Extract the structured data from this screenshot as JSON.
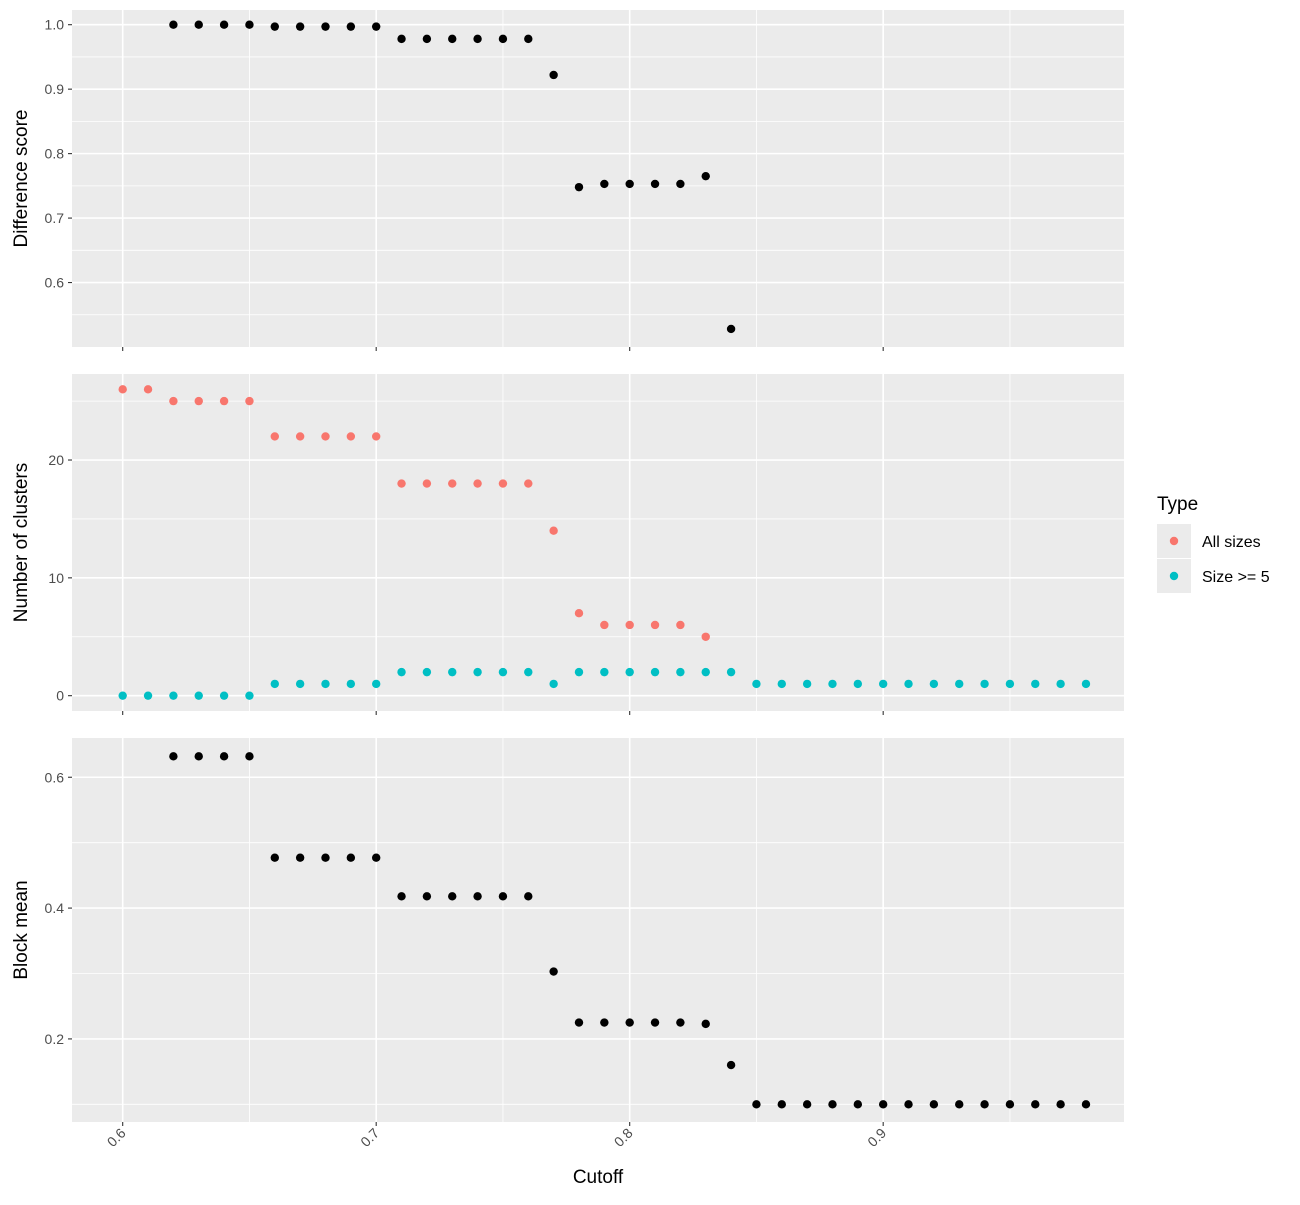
{
  "chart_data": {
    "type": "scatter",
    "xlabel": "Cutoff",
    "xlim": [
      0.58,
      0.995
    ],
    "xticks": [
      0.6,
      0.7,
      0.8,
      0.9
    ],
    "xtick_labels": [
      "0.6",
      "0.7",
      "0.8",
      "0.9"
    ],
    "x_tick_rotation_deg": -45,
    "background": "#ebebeb",
    "grid": true,
    "facets": [
      {
        "id": "difference",
        "ylabel": "Difference score",
        "ylim": [
          0.5,
          1.0228
        ],
        "yticks": [
          0.6,
          0.7,
          0.8,
          0.9,
          1.0
        ],
        "ytick_labels": [
          "0.6",
          "0.7",
          "0.8",
          "0.9",
          "1.0"
        ],
        "series": [
          {
            "color": "#000000",
            "x": [
              0.62,
              0.63,
              0.64,
              0.65,
              0.66,
              0.67,
              0.68,
              0.69,
              0.7,
              0.71,
              0.72,
              0.73,
              0.74,
              0.75,
              0.76,
              0.77,
              0.78,
              0.79,
              0.8,
              0.81,
              0.82,
              0.83,
              0.84
            ],
            "y": [
              1.0,
              1.0,
              1.0,
              1.0,
              0.997,
              0.997,
              0.997,
              0.997,
              0.997,
              0.978,
              0.978,
              0.978,
              0.978,
              0.978,
              0.978,
              0.922,
              0.748,
              0.753,
              0.753,
              0.753,
              0.753,
              0.765,
              0.528
            ]
          }
        ]
      },
      {
        "id": "clusters",
        "ylabel": "Number of clusters",
        "ylim": [
          -1.3,
          27.3
        ],
        "yticks": [
          0,
          10,
          20
        ],
        "ytick_labels": [
          "0",
          "10",
          "20"
        ],
        "series": [
          {
            "name": "All sizes",
            "color": "#f8766d",
            "x": [
              0.6,
              0.61,
              0.62,
              0.63,
              0.64,
              0.65,
              0.66,
              0.67,
              0.68,
              0.69,
              0.7,
              0.71,
              0.72,
              0.73,
              0.74,
              0.75,
              0.76,
              0.77,
              0.78,
              0.79,
              0.8,
              0.81,
              0.82,
              0.83
            ],
            "y": [
              26,
              26,
              25,
              25,
              25,
              25,
              22,
              22,
              22,
              22,
              22,
              18,
              18,
              18,
              18,
              18,
              18,
              14,
              7,
              6,
              6,
              6,
              6,
              5
            ]
          },
          {
            "name": "Size >= 5",
            "color": "#00bfc4",
            "x": [
              0.6,
              0.61,
              0.62,
              0.63,
              0.64,
              0.65,
              0.66,
              0.67,
              0.68,
              0.69,
              0.7,
              0.71,
              0.72,
              0.73,
              0.74,
              0.75,
              0.76,
              0.77,
              0.78,
              0.79,
              0.8,
              0.81,
              0.82,
              0.83,
              0.84,
              0.85,
              0.86,
              0.87,
              0.88,
              0.89,
              0.9,
              0.91,
              0.92,
              0.93,
              0.94,
              0.95,
              0.96,
              0.97,
              0.98
            ],
            "y": [
              0,
              0,
              0,
              0,
              0,
              0,
              1,
              1,
              1,
              1,
              1,
              2,
              2,
              2,
              2,
              2,
              2,
              1,
              2,
              2,
              2,
              2,
              2,
              2,
              2,
              1,
              1,
              1,
              1,
              1,
              1,
              1,
              1,
              1,
              1,
              1,
              1,
              1,
              1
            ]
          }
        ]
      },
      {
        "id": "blockmean",
        "ylabel": "Block mean",
        "ylim": [
          0.073,
          0.66
        ],
        "yticks": [
          0.2,
          0.4,
          0.6
        ],
        "ytick_labels": [
          "0.2",
          "0.4",
          "0.6"
        ],
        "series": [
          {
            "color": "#000000",
            "x": [
              0.62,
              0.63,
              0.64,
              0.65,
              0.66,
              0.67,
              0.68,
              0.69,
              0.7,
              0.71,
              0.72,
              0.73,
              0.74,
              0.75,
              0.76,
              0.77,
              0.78,
              0.79,
              0.8,
              0.81,
              0.82,
              0.83,
              0.84,
              0.85,
              0.86,
              0.87,
              0.88,
              0.89,
              0.9,
              0.91,
              0.92,
              0.93,
              0.94,
              0.95,
              0.96,
              0.97,
              0.98
            ],
            "y": [
              0.632,
              0.632,
              0.632,
              0.632,
              0.477,
              0.477,
              0.477,
              0.477,
              0.477,
              0.418,
              0.418,
              0.418,
              0.418,
              0.418,
              0.418,
              0.303,
              0.225,
              0.225,
              0.225,
              0.225,
              0.225,
              0.223,
              0.16,
              0.1,
              0.1,
              0.1,
              0.1,
              0.1,
              0.1,
              0.1,
              0.1,
              0.1,
              0.1,
              0.1,
              0.1,
              0.1,
              0.1
            ]
          }
        ]
      }
    ],
    "legend": {
      "title": "Type",
      "position": "right",
      "entries": [
        {
          "label": "All sizes",
          "color": "#f8766d"
        },
        {
          "label": "Size >= 5",
          "color": "#00bfc4"
        }
      ]
    }
  }
}
